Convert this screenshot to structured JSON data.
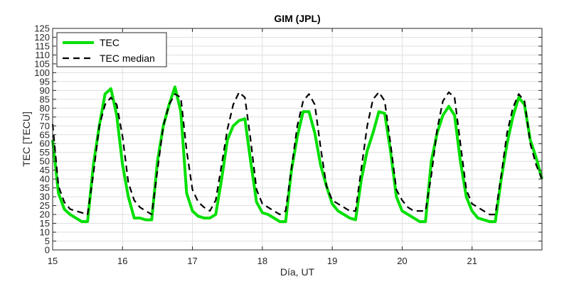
{
  "chart_data": {
    "type": "line",
    "title": "GIM (JPL)",
    "xlabel": "Día, UT",
    "ylabel": "TEC [TECU]",
    "xlim": [
      15,
      22
    ],
    "ylim": [
      0,
      125
    ],
    "xticks": [
      15,
      16,
      17,
      18,
      19,
      20,
      21
    ],
    "yticks": [
      0,
      5,
      10,
      15,
      20,
      25,
      30,
      35,
      40,
      45,
      50,
      55,
      60,
      65,
      70,
      75,
      80,
      85,
      90,
      95,
      100,
      105,
      110,
      115,
      120,
      125
    ],
    "grid": true,
    "legend_position": "top-left",
    "colors": {
      "TEC": "#00e000",
      "TEC median": "#000000"
    },
    "series": [
      {
        "name": "TEC",
        "style": "solid",
        "x": [
          15.0,
          15.083,
          15.167,
          15.25,
          15.333,
          15.417,
          15.5,
          15.583,
          15.667,
          15.75,
          15.833,
          15.917,
          16.0,
          16.083,
          16.167,
          16.25,
          16.333,
          16.417,
          16.5,
          16.583,
          16.667,
          16.75,
          16.833,
          16.917,
          17.0,
          17.083,
          17.167,
          17.25,
          17.333,
          17.417,
          17.5,
          17.583,
          17.667,
          17.75,
          17.833,
          17.917,
          18.0,
          18.083,
          18.167,
          18.25,
          18.333,
          18.417,
          18.5,
          18.583,
          18.667,
          18.75,
          18.833,
          18.917,
          19.0,
          19.083,
          19.167,
          19.25,
          19.333,
          19.417,
          19.5,
          19.583,
          19.667,
          19.75,
          19.833,
          19.917,
          20.0,
          20.083,
          20.167,
          20.25,
          20.333,
          20.417,
          20.5,
          20.583,
          20.667,
          20.75,
          20.833,
          20.917,
          21.0,
          21.083,
          21.167,
          21.25,
          21.333,
          21.417,
          21.5,
          21.583,
          21.667,
          21.75,
          21.833,
          21.917,
          22.0
        ],
        "y": [
          62,
          32,
          23,
          20,
          18,
          16,
          16,
          48,
          70,
          88,
          91,
          76,
          48,
          30,
          18,
          18,
          17,
          17,
          50,
          70,
          82,
          92,
          78,
          32,
          22,
          19,
          18,
          18,
          20,
          40,
          62,
          70,
          73,
          74,
          50,
          27,
          21,
          20,
          18,
          16,
          16,
          45,
          64,
          78,
          78,
          66,
          48,
          36,
          26,
          22,
          20,
          18,
          17,
          40,
          56,
          66,
          78,
          77,
          56,
          30,
          22,
          20,
          18,
          16,
          16,
          50,
          66,
          76,
          81,
          76,
          50,
          30,
          22,
          18,
          17,
          16,
          16,
          40,
          60,
          75,
          86,
          82,
          62,
          52,
          40
        ]
      },
      {
        "name": "TEC median",
        "style": "dashed",
        "x": [
          15.0,
          15.083,
          15.167,
          15.25,
          15.333,
          15.417,
          15.5,
          15.583,
          15.667,
          15.75,
          15.833,
          15.917,
          16.0,
          16.083,
          16.167,
          16.25,
          16.333,
          16.417,
          16.5,
          16.583,
          16.667,
          16.75,
          16.833,
          16.917,
          17.0,
          17.083,
          17.167,
          17.25,
          17.333,
          17.417,
          17.5,
          17.583,
          17.667,
          17.75,
          17.833,
          17.917,
          18.0,
          18.083,
          18.167,
          18.25,
          18.333,
          18.417,
          18.5,
          18.583,
          18.667,
          18.75,
          18.833,
          18.917,
          19.0,
          19.083,
          19.167,
          19.25,
          19.333,
          19.417,
          19.5,
          19.583,
          19.667,
          19.75,
          19.833,
          19.917,
          20.0,
          20.083,
          20.167,
          20.25,
          20.333,
          20.417,
          20.5,
          20.583,
          20.667,
          20.75,
          20.833,
          20.917,
          21.0,
          21.083,
          21.167,
          21.25,
          21.333,
          21.417,
          21.5,
          21.583,
          21.667,
          21.75,
          21.833,
          21.917,
          22.0
        ],
        "y": [
          71,
          36,
          27,
          23,
          22,
          21,
          20,
          43,
          70,
          82,
          86,
          82,
          64,
          38,
          28,
          24,
          22,
          20,
          45,
          70,
          82,
          88,
          86,
          56,
          34,
          27,
          24,
          22,
          28,
          48,
          68,
          82,
          89,
          86,
          62,
          34,
          26,
          24,
          22,
          20,
          22,
          46,
          70,
          84,
          88,
          82,
          58,
          36,
          28,
          26,
          24,
          22,
          22,
          46,
          70,
          85,
          89,
          84,
          60,
          34,
          28,
          24,
          22,
          22,
          22,
          42,
          68,
          84,
          89,
          86,
          60,
          34,
          26,
          24,
          22,
          20,
          20,
          42,
          66,
          80,
          88,
          84,
          60,
          48,
          40
        ]
      }
    ]
  }
}
